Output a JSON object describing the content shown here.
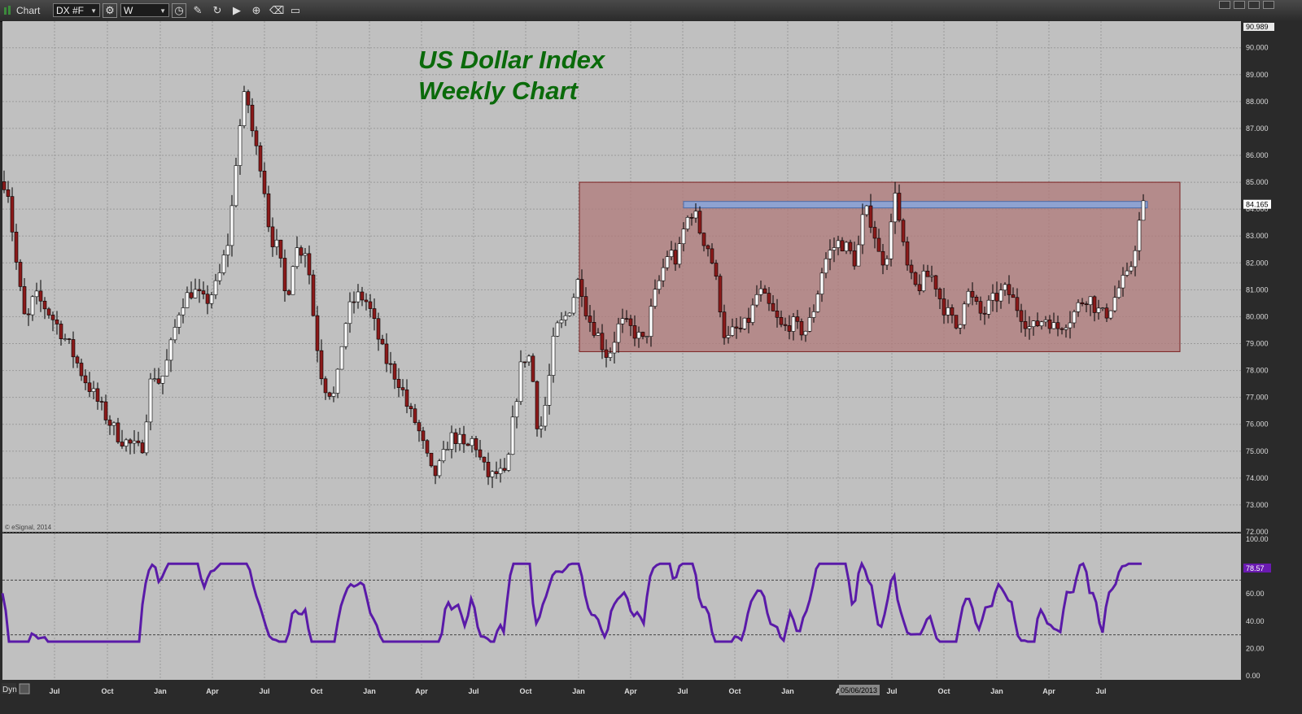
{
  "window": {
    "title": "Chart",
    "symbol": "DX #F",
    "interval": "W",
    "toolbar_icons": [
      "crosshair-icon",
      "pencil-icon",
      "cycle-icon",
      "play-icon",
      "zoom-icon",
      "eraser-icon",
      "comment-icon"
    ]
  },
  "chart_data": {
    "type": "candlestick",
    "title": "US Dollar Index",
    "subtitle": "Weekly Chart",
    "copyright": "© eSignal, 2014",
    "price_axis": {
      "ylim": [
        72.0,
        90.989
      ],
      "ticks": [
        "72.000",
        "73.000",
        "74.000",
        "75.000",
        "76.000",
        "77.000",
        "78.000",
        "79.000",
        "80.000",
        "81.000",
        "82.000",
        "83.000",
        "84.000",
        "85.000",
        "86.000",
        "87.000",
        "88.000",
        "89.000",
        "90.000"
      ],
      "top_label": "90.989"
    },
    "last_price": "84.165",
    "last_price_value": 84.165,
    "x_axis_labels": [
      "Jul",
      "Oct",
      "Jan",
      "Apr",
      "Jul",
      "Oct",
      "Jan",
      "Apr",
      "Jul",
      "Oct",
      "Jan",
      "Apr",
      "Jul",
      "Oct",
      "Jan",
      "A",
      "Jul",
      "Oct",
      "Jan",
      "Apr",
      "Jul"
    ],
    "x_axis_label_x": [
      67,
      132,
      197,
      261,
      325,
      389,
      454,
      518,
      582,
      646,
      711,
      775,
      839,
      903,
      968,
      1030,
      1096,
      1160,
      1225,
      1289,
      1353
    ],
    "cursor_date": "05/06/2013",
    "price_path_anchors": [
      [
        0,
        84.3
      ],
      [
        5,
        85.5
      ],
      [
        12,
        83.5
      ],
      [
        20,
        81.5
      ],
      [
        30,
        79.6
      ],
      [
        40,
        80.8
      ],
      [
        55,
        80.3
      ],
      [
        70,
        79.6
      ],
      [
        85,
        78.8
      ],
      [
        100,
        77.8
      ],
      [
        115,
        77.0
      ],
      [
        130,
        76.2
      ],
      [
        145,
        75.5
      ],
      [
        160,
        75.2
      ],
      [
        172,
        75.0
      ],
      [
        185,
        78.0
      ],
      [
        195,
        77.5
      ],
      [
        205,
        78.5
      ],
      [
        220,
        80.5
      ],
      [
        235,
        81.0
      ],
      [
        250,
        80.5
      ],
      [
        265,
        81.2
      ],
      [
        280,
        83.0
      ],
      [
        290,
        86.5
      ],
      [
        300,
        88.5
      ],
      [
        310,
        86.5
      ],
      [
        320,
        85.5
      ],
      [
        330,
        83.0
      ],
      [
        340,
        82.5
      ],
      [
        350,
        80.5
      ],
      [
        360,
        82.5
      ],
      [
        375,
        82.5
      ],
      [
        385,
        79.5
      ],
      [
        395,
        77.5
      ],
      [
        410,
        77.0
      ],
      [
        420,
        79.5
      ],
      [
        430,
        80.5
      ],
      [
        440,
        80.8
      ],
      [
        450,
        80.5
      ],
      [
        460,
        79.5
      ],
      [
        470,
        78.5
      ],
      [
        480,
        78.0
      ],
      [
        490,
        77.5
      ],
      [
        500,
        76.5
      ],
      [
        510,
        76.0
      ],
      [
        520,
        75.0
      ],
      [
        530,
        74.0
      ],
      [
        540,
        74.5
      ],
      [
        550,
        75.5
      ],
      [
        560,
        75.5
      ],
      [
        570,
        75.0
      ],
      [
        580,
        75.5
      ],
      [
        590,
        74.5
      ],
      [
        600,
        74.0
      ],
      [
        610,
        74.2
      ],
      [
        620,
        74.0
      ],
      [
        630,
        76.5
      ],
      [
        640,
        78.5
      ],
      [
        650,
        78.5
      ],
      [
        660,
        75.5
      ],
      [
        670,
        77.0
      ],
      [
        680,
        79.5
      ],
      [
        690,
        79.8
      ],
      [
        700,
        80.5
      ],
      [
        710,
        81.5
      ],
      [
        720,
        80.0
      ],
      [
        730,
        79.5
      ],
      [
        745,
        78.5
      ],
      [
        760,
        79.8
      ],
      [
        775,
        79.5
      ],
      [
        790,
        79.0
      ],
      [
        800,
        80.5
      ],
      [
        810,
        81.5
      ],
      [
        820,
        82.5
      ],
      [
        830,
        82.0
      ],
      [
        840,
        83.5
      ],
      [
        850,
        84.0
      ],
      [
        860,
        83.0
      ],
      [
        870,
        82.5
      ],
      [
        880,
        81.0
      ],
      [
        890,
        79.0
      ],
      [
        900,
        79.5
      ],
      [
        910,
        79.5
      ],
      [
        920,
        80.0
      ],
      [
        930,
        81.0
      ],
      [
        940,
        80.5
      ],
      [
        950,
        80.0
      ],
      [
        960,
        79.5
      ],
      [
        970,
        79.8
      ],
      [
        980,
        79.5
      ],
      [
        990,
        79.5
      ],
      [
        1000,
        80.5
      ],
      [
        1010,
        82.0
      ],
      [
        1020,
        82.5
      ],
      [
        1030,
        82.8
      ],
      [
        1040,
        82.5
      ],
      [
        1050,
        82.0
      ],
      [
        1060,
        84.0
      ],
      [
        1070,
        83.5
      ],
      [
        1080,
        82.0
      ],
      [
        1090,
        82.5
      ],
      [
        1098,
        84.8
      ],
      [
        1105,
        83.0
      ],
      [
        1115,
        81.5
      ],
      [
        1125,
        81.0
      ],
      [
        1135,
        81.5
      ],
      [
        1145,
        81.5
      ],
      [
        1155,
        80.5
      ],
      [
        1165,
        80.0
      ],
      [
        1175,
        79.5
      ],
      [
        1185,
        81.0
      ],
      [
        1195,
        80.5
      ],
      [
        1205,
        80.0
      ],
      [
        1215,
        80.5
      ],
      [
        1225,
        80.8
      ],
      [
        1235,
        81.0
      ],
      [
        1245,
        80.5
      ],
      [
        1255,
        80.0
      ],
      [
        1265,
        79.5
      ],
      [
        1275,
        79.8
      ],
      [
        1285,
        80.0
      ],
      [
        1295,
        79.5
      ],
      [
        1305,
        79.8
      ],
      [
        1315,
        80.0
      ],
      [
        1325,
        80.5
      ],
      [
        1335,
        80.8
      ],
      [
        1345,
        80.3
      ],
      [
        1355,
        80.0
      ],
      [
        1365,
        80.5
      ],
      [
        1375,
        81.2
      ],
      [
        1385,
        81.5
      ],
      [
        1392,
        82.5
      ],
      [
        1398,
        83.5
      ],
      [
        1403,
        84.1
      ]
    ],
    "shaded_range": {
      "x_start": 712,
      "x_end": 1450,
      "top": 85.0,
      "bottom": 78.7
    },
    "resistance_line": {
      "x_start": 840,
      "x_end": 1410,
      "value": 84.165
    },
    "indicator": {
      "name": "RSI",
      "label": "Dyn",
      "ylim": [
        0,
        100
      ],
      "ticks": [
        "0.00",
        "20.00",
        "40.00",
        "60.00",
        "80.00",
        "100.00"
      ],
      "levels": [
        30,
        70
      ],
      "last_value": "78.57",
      "color": "#5a1aa8"
    }
  },
  "colors": {
    "background": "#c0c0c0",
    "up_candle": "#ffffff",
    "down_candle": "#8b1a1a",
    "title_color": "#0a6a0a",
    "shade_fill": "#b07a7a",
    "shade_stroke": "#7a2020",
    "resistance_fill": "#8aa4d8",
    "last_price_bg": "#ffffff",
    "rsi_badge_bg": "#6a1ab0"
  }
}
